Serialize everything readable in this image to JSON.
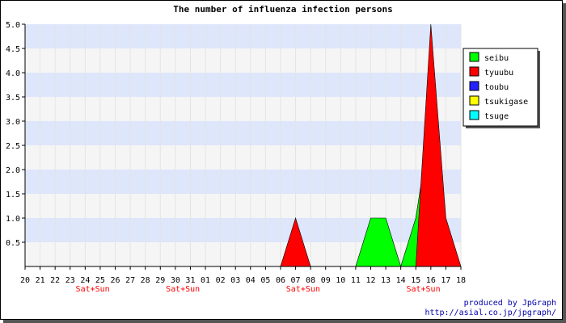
{
  "chart_data": {
    "type": "area",
    "title": "The number of influenza infection persons",
    "categories": [
      "20",
      "21",
      "22",
      "23",
      "24",
      "25",
      "26",
      "27",
      "28",
      "29",
      "30",
      "31",
      "01",
      "02",
      "03",
      "04",
      "05",
      "06",
      "07",
      "08",
      "09",
      "10",
      "11",
      "12",
      "13",
      "14",
      "15",
      "16",
      "17",
      "18"
    ],
    "ylim": [
      0,
      5
    ],
    "yticks": [
      "0.5",
      "1.0",
      "1.5",
      "2.0",
      "2.5",
      "3.0",
      "3.5",
      "4.0",
      "4.5",
      "5.0"
    ],
    "weekend_label": "Sat+Sun",
    "weekend_under": [
      "24",
      "30",
      "07",
      "15"
    ],
    "grid": true,
    "legend_position": "right",
    "series": [
      {
        "name": "seibu",
        "color": "#00ff00",
        "values": [
          0,
          0,
          0,
          0,
          0,
          0,
          0,
          0,
          0,
          0,
          0,
          0,
          0,
          0,
          0,
          0,
          0,
          0,
          0,
          0,
          0,
          0,
          0,
          1,
          1,
          0,
          1,
          3,
          0,
          0
        ]
      },
      {
        "name": "tyuubu",
        "color": "#ff0000",
        "values": [
          0,
          0,
          0,
          0,
          0,
          0,
          0,
          0,
          0,
          0,
          0,
          0,
          0,
          0,
          0,
          0,
          0,
          0,
          1,
          0,
          0,
          0,
          0,
          0,
          0,
          0,
          0,
          5,
          1,
          0
        ]
      },
      {
        "name": "toubu",
        "color": "#2222ff",
        "values": [
          0,
          0,
          0,
          0,
          0,
          0,
          0,
          0,
          0,
          0,
          0,
          0,
          0,
          0,
          0,
          0,
          0,
          0,
          0,
          0,
          0,
          0,
          0,
          0,
          0,
          0,
          0,
          0,
          0,
          0
        ]
      },
      {
        "name": "tsukigase",
        "color": "#ffff00",
        "values": [
          0,
          0,
          0,
          0,
          0,
          0,
          0,
          0,
          0,
          0,
          0,
          0,
          0,
          0,
          0,
          0,
          0,
          0,
          0,
          0,
          0,
          0,
          0,
          0,
          0,
          0,
          0,
          0,
          0,
          0
        ]
      },
      {
        "name": "tsuge",
        "color": "#00ffff",
        "values": [
          0,
          0,
          0,
          0,
          0,
          0,
          0,
          0,
          0,
          0,
          0,
          0,
          0,
          0,
          0,
          0,
          0,
          0,
          0,
          0,
          0,
          0,
          0,
          0,
          0,
          0,
          0,
          0,
          0,
          0
        ]
      }
    ]
  },
  "credits": {
    "line1": "produced by JpGraph",
    "line2": "http://asial.co.jp/jpgraph/"
  }
}
